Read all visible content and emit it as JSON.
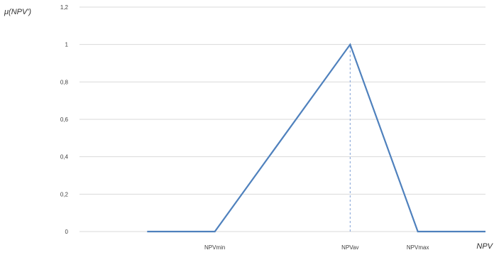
{
  "chart_data": {
    "type": "line",
    "title": "",
    "ylabel": "μ(NPV')",
    "xlabel": "NPV",
    "ylim": [
      0,
      1.2
    ],
    "yticks": [
      "0",
      "0,2",
      "0,4",
      "0,6",
      "0,8",
      "1",
      "1,2"
    ],
    "ytick_values": [
      0,
      0.2,
      0.4,
      0.6,
      0.8,
      1,
      1.2
    ],
    "x_labels": [
      {
        "label": "NPVmin",
        "x": 1
      },
      {
        "label": "NPVav",
        "x": 3
      },
      {
        "label": "NPVmax",
        "x": 4
      }
    ],
    "xlim": [
      -1,
      5
    ],
    "series": [
      {
        "x": [
          0,
          1,
          3,
          4,
          5
        ],
        "y": [
          0,
          0,
          1,
          0,
          0
        ]
      }
    ],
    "reference_lines": [
      {
        "x": 3,
        "y0": 0,
        "y1": 1,
        "style": "dashed"
      }
    ],
    "grid": "horizontal",
    "legend": "none",
    "colors": {
      "series": "#4f81bd",
      "grid": "#d9d9d9",
      "reference": "#7f9fd4"
    }
  }
}
